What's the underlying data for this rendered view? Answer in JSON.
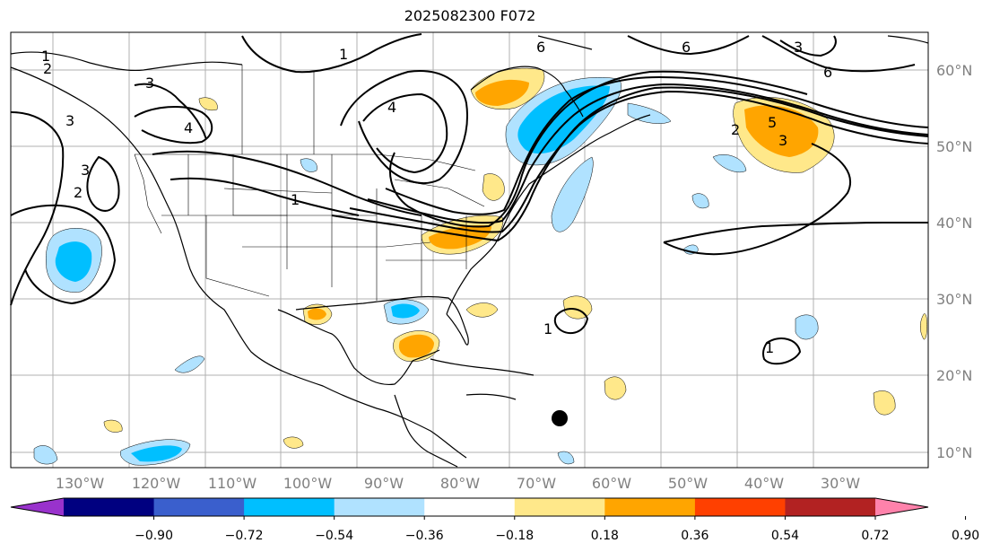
{
  "title": "2025082300 F072",
  "map": {
    "lat_labels": [
      "60°N",
      "50°N",
      "40°N",
      "30°N",
      "20°N",
      "10°N"
    ],
    "lon_labels": [
      "130°W",
      "120°W",
      "110°W",
      "100°W",
      "90°W",
      "80°W",
      "70°W",
      "60°W",
      "50°W",
      "40°W",
      "30°W"
    ],
    "contour_labels": [
      "1",
      "2",
      "3",
      "4",
      "1",
      "3",
      "4",
      "2",
      "3",
      "1",
      "2",
      "6",
      "6",
      "3",
      "6",
      "5",
      "3",
      "1",
      "1"
    ]
  },
  "colorbar": {
    "ticks": [
      "−0.90",
      "−0.72",
      "−0.54",
      "−0.36",
      "−0.18",
      "0.18",
      "0.36",
      "0.54",
      "0.72",
      "0.90"
    ],
    "colors": [
      "#9932cc",
      "#000080",
      "#3a5fcd",
      "#00bfff",
      "#b0e2ff",
      "#ffffff",
      "#ffe88a",
      "#ffa500",
      "#ff4000",
      "#b22222",
      "#ff82ab"
    ]
  }
}
